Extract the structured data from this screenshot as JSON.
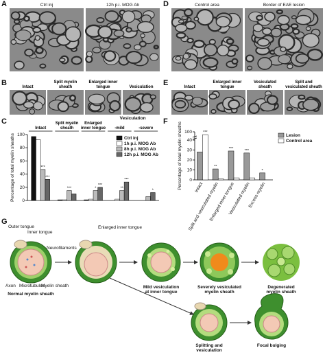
{
  "panel_letters": [
    "A",
    "B",
    "C",
    "D",
    "E",
    "F",
    "G"
  ],
  "micrographs": {
    "A": [
      "Ctrl inj",
      "12h p.i. MOG Ab"
    ],
    "B": [
      "Intact",
      "Split myelin sheath",
      "Enlarged inner tongue",
      "Vesiculation"
    ],
    "D": [
      "Control area",
      "Border of EAE lesion"
    ],
    "E": [
      "Intact",
      "Enlarged inner tongue",
      "Vesiculated sheath",
      "Split and vesiculated sheath"
    ]
  },
  "chart_data": [
    {
      "type": "bar",
      "y_label": "Percentage of total myelin sheaths",
      "categories": [
        "Intact",
        "Split myelin sheath",
        "Enlarged inner tongue",
        "-mild",
        "-severe"
      ],
      "group_label": "Vesiculation",
      "ylim": [
        0,
        100
      ],
      "yticks": [
        0,
        20,
        40,
        60,
        80,
        100
      ],
      "series": [
        {
          "name": "Ctrl inj",
          "color": "#111111",
          "values": [
            97,
            1,
            1,
            0,
            0
          ],
          "significance": [
            null,
            null,
            null,
            null,
            null
          ]
        },
        {
          "name": "1h p.i. MOG Ab",
          "color": "#ffffff",
          "values": [
            92,
            1,
            2,
            2,
            0
          ],
          "significance": [
            null,
            null,
            null,
            null,
            null
          ]
        },
        {
          "name": "8h p.i. MOG Ab",
          "color": "#bbbbbb",
          "values": [
            47,
            15,
            15,
            15,
            6
          ],
          "significance": [
            "***",
            "***",
            "*",
            "**",
            null
          ]
        },
        {
          "name": "12h p.i. MOG Ab",
          "color": "#666666",
          "values": [
            32,
            10,
            20,
            28,
            12
          ],
          "significance": [
            "***",
            null,
            "***",
            "***",
            "*"
          ]
        }
      ]
    },
    {
      "type": "bar",
      "y_label": "Percentage of total myelin sheaths",
      "categories": [
        "Intact",
        "Split and vesiculated myelin",
        "Enlarged inner tongue",
        "Vesiculated myelin",
        "Excess myelin"
      ],
      "ylim": [
        0,
        100
      ],
      "y_break": [
        40,
        95
      ],
      "yticks": [
        0,
        10,
        20,
        30,
        40,
        100
      ],
      "series": [
        {
          "name": "Lesion",
          "color": "#999999",
          "values": [
            28,
            11,
            29,
            27,
            7
          ],
          "significance": [
            null,
            "**",
            "***",
            "***",
            "*"
          ]
        },
        {
          "name": "Control area",
          "color": "#ffffff",
          "values": [
            97,
            1,
            2,
            2,
            0
          ],
          "significance": [
            "***",
            null,
            null,
            null,
            null
          ]
        }
      ]
    }
  ],
  "diagram": {
    "parts": [
      "Outer tongue",
      "Inner tongue",
      "Neurofilaments",
      "Axon",
      "Microtubules",
      "Myelin sheath"
    ],
    "stages": [
      [
        "Normal myelin sheath"
      ],
      [
        "Enlarged inner tongue"
      ],
      [
        "Mild vesiculation",
        "at inner tongue"
      ],
      [
        "Severely vesiculated",
        "myelin sheath"
      ],
      [
        "Degenerated",
        "myelin sheath"
      ],
      [
        "Splitting and",
        "vesiculation"
      ],
      [
        "Focal bulging"
      ]
    ]
  }
}
